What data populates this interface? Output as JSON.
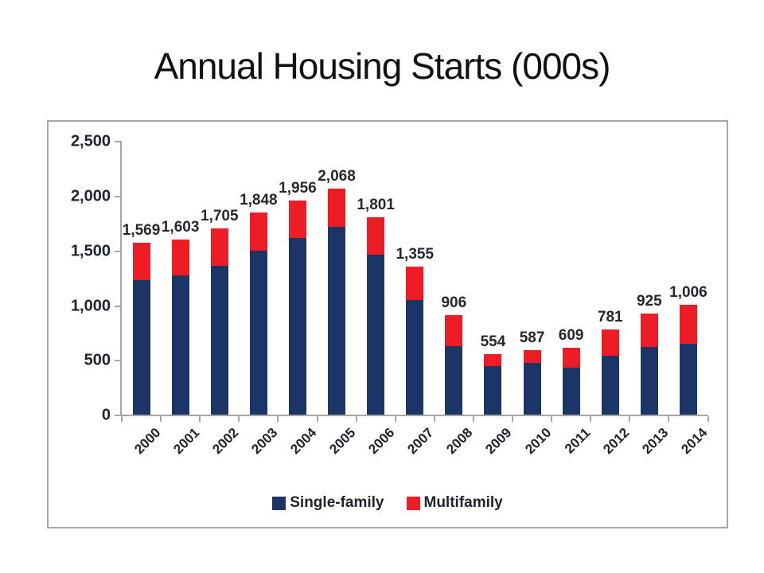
{
  "page": {
    "title": "Annual Housing Starts (000s)"
  },
  "chart_data": {
    "type": "bar",
    "stacked": true,
    "title": "Annual Housing Starts (000s)",
    "categories": [
      "2000",
      "2001",
      "2002",
      "2003",
      "2004",
      "2005",
      "2006",
      "2007",
      "2008",
      "2009",
      "2010",
      "2011",
      "2012",
      "2013",
      "2014"
    ],
    "series": [
      {
        "name": "Single-family",
        "color": "#1b3566",
        "values": [
          1231,
          1273,
          1359,
          1499,
          1611,
          1716,
          1465,
          1046,
          622,
          445,
          471,
          431,
          535,
          618,
          648
        ]
      },
      {
        "name": "Multifamily",
        "color": "#ee1c25",
        "values": [
          338,
          330,
          346,
          349,
          345,
          352,
          336,
          309,
          284,
          109,
          116,
          178,
          246,
          307,
          358
        ]
      }
    ],
    "totals": [
      1569,
      1603,
      1705,
      1848,
      1956,
      2068,
      1801,
      1355,
      906,
      554,
      587,
      609,
      781,
      925,
      1006
    ],
    "total_labels": [
      "1,569",
      "1,603",
      "1,705",
      "1,848",
      "1,956",
      "2,068",
      "1,801",
      "1,355",
      "906",
      "554",
      "587",
      "609",
      "781",
      "925",
      "1,006"
    ],
    "xlabel": "",
    "ylabel": "",
    "ylim": [
      0,
      2500
    ],
    "ytick_interval": 500,
    "ytick_labels": [
      "0",
      "500",
      "1,000",
      "1,500",
      "2,000",
      "2,500"
    ],
    "grid": false,
    "legend_position": "bottom",
    "colors": {
      "axis": "#a6a6a6",
      "frame_border": "#a8a8a8",
      "text": "#20242e",
      "background": "#ffffff"
    }
  }
}
